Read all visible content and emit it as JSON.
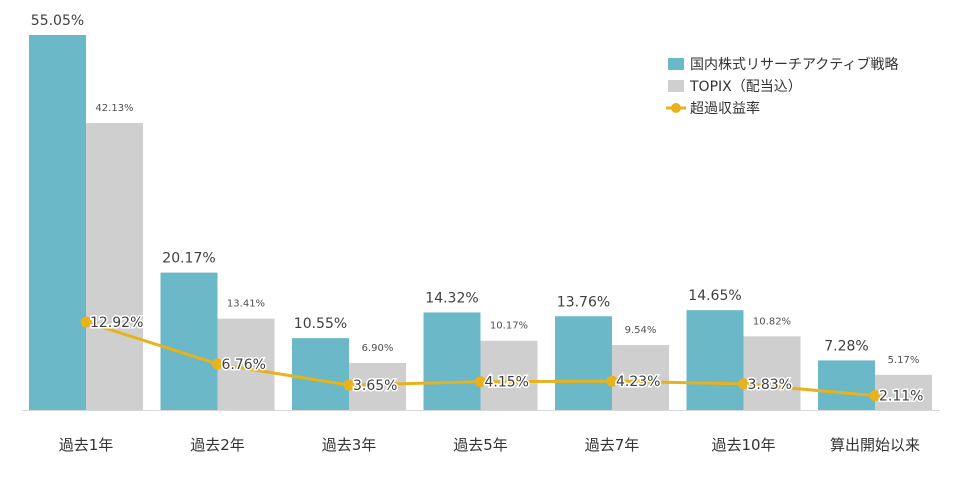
{
  "chart_data": {
    "type": "bar",
    "categories": [
      "過去1年",
      "過去2年",
      "過去3年",
      "過去5年",
      "過去7年",
      "過去10年",
      "算出開始以来"
    ],
    "series": [
      {
        "name": "国内株式リサーチアクティブ戦略",
        "kind": "bar",
        "color": "#6bb8c8",
        "values": [
          55.05,
          20.17,
          10.55,
          14.32,
          13.76,
          14.65,
          7.28
        ],
        "labels": [
          "55.05%",
          "20.17%",
          "10.55%",
          "14.32%",
          "13.76%",
          "14.65%",
          "7.28%"
        ]
      },
      {
        "name": "TOPIX（配当込）",
        "kind": "bar",
        "color": "#cfcfcf",
        "values": [
          42.13,
          13.41,
          6.9,
          10.17,
          9.54,
          10.82,
          5.17
        ],
        "labels": [
          "42.13%",
          "13.41%",
          "6.90%",
          "10.17%",
          "9.54%",
          "10.82%",
          "5.17%"
        ]
      },
      {
        "name": "超過収益率",
        "kind": "line",
        "color": "#e8b21c",
        "values": [
          12.92,
          6.76,
          3.65,
          4.15,
          4.23,
          3.83,
          2.11
        ],
        "labels": [
          "12.92%",
          "6.76%",
          "3.65%",
          "4.15%",
          "4.23%",
          "3.83%",
          "2.11%"
        ]
      }
    ],
    "ylim": [
      0,
      55.05
    ],
    "grid": false,
    "legend_position": "top-right",
    "title": "",
    "xlabel": "",
    "ylabel": ""
  }
}
